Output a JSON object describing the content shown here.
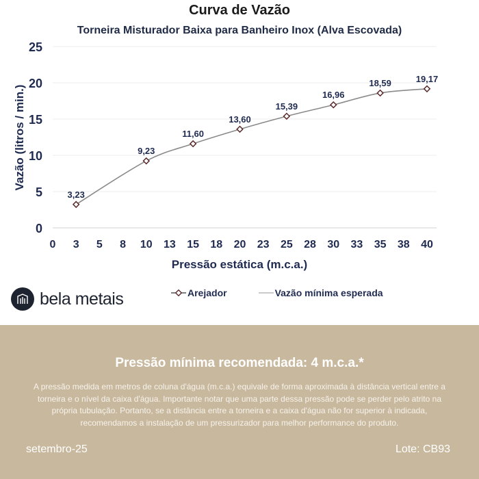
{
  "chart_data": {
    "type": "line",
    "title": "Curva de Vazão",
    "subtitle": "Torneira Misturador Baixa para Banheiro Inox (Alva Escovada)",
    "xlabel": "Pressão estática (m.c.a.)",
    "ylabel": "Vazão (litros / min.)",
    "xlim": [
      0,
      40
    ],
    "ylim": [
      0,
      25
    ],
    "x_ticks": [
      0,
      2.5,
      5,
      7.5,
      10,
      12.5,
      15,
      17.5,
      20,
      22.5,
      25,
      27.5,
      30,
      32.5,
      35,
      37.5,
      40
    ],
    "x_tick_labels": [
      "0",
      "3",
      "5",
      "8",
      "10",
      "13",
      "15",
      "18",
      "20",
      "23",
      "25",
      "28",
      "30",
      "33",
      "35",
      "38",
      "40"
    ],
    "y_ticks": [
      0,
      5,
      10,
      15,
      20,
      25
    ],
    "y_tick_labels": [
      "0",
      "5",
      "10",
      "15",
      "20",
      "25"
    ],
    "grid": true,
    "legend_position": "bottom",
    "series": [
      {
        "name": "Arejador",
        "color": "#5a2a2a",
        "x": [
          2.5,
          10,
          15,
          20,
          25,
          30,
          35,
          40
        ],
        "values": [
          3.23,
          9.23,
          11.6,
          13.6,
          15.39,
          16.96,
          18.59,
          19.17
        ],
        "labels": [
          "3,23",
          "9,23",
          "11,60",
          "13,60",
          "15,39",
          "16,96",
          "18,59",
          "19,17"
        ]
      },
      {
        "name": "Vazão mínima esperada",
        "color": "#8a8a8a"
      }
    ]
  },
  "brand": {
    "name": "bela metais"
  },
  "footer": {
    "headline": "Pressão mínima recomendada: 4 m.c.a.*",
    "body": "A pressão medida em metros de coluna d'água (m.c.a.) equivale de forma aproximada à distância vertical entre a torneira e o nível da caixa d'água. Importante notar que uma parte dessa pressão pode se perder pelo atrito na própria tubulação. Portanto, se a distância entre a torneira e a caixa d'água não for superior à indicada, recomendamos a instalação de um pressurizador para melhor performance do produto.",
    "date": "setembro-25",
    "lote": "Lote: CB93"
  },
  "colors": {
    "axis_text": "#1f2a50",
    "footer_bg": "#c8b89d",
    "line": "#8a8a8a"
  }
}
